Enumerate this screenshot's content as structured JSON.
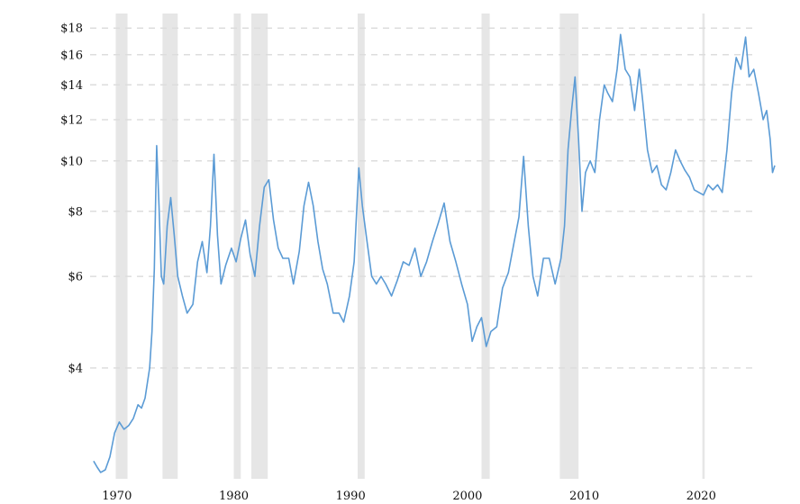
{
  "chart_data": {
    "type": "line",
    "title": "",
    "xlabel": "",
    "ylabel": "",
    "y_scale": "log",
    "xlim": [
      1967.7,
      2024.6
    ],
    "ylim": [
      2.45,
      19.2
    ],
    "y_ticks": [
      {
        "value": 4,
        "label": "$4"
      },
      {
        "value": 6,
        "label": "$6"
      },
      {
        "value": 8,
        "label": "$8"
      },
      {
        "value": 10,
        "label": "$10"
      },
      {
        "value": 12,
        "label": "$12"
      },
      {
        "value": 14,
        "label": "$14"
      },
      {
        "value": 16,
        "label": "$16"
      },
      {
        "value": 18,
        "label": "$18"
      }
    ],
    "x_ticks": [
      {
        "value": 1970,
        "label": "1970"
      },
      {
        "value": 1980,
        "label": "1980"
      },
      {
        "value": 1990,
        "label": "1990"
      },
      {
        "value": 2000,
        "label": "2000"
      },
      {
        "value": 2010,
        "label": "2010"
      },
      {
        "value": 2020,
        "label": "2020"
      }
    ],
    "grid": "horizontal-dashed",
    "legend": "none",
    "shaded_periods": [
      [
        1969.9,
        1970.9
      ],
      [
        1973.9,
        1975.2
      ],
      [
        1980.0,
        1980.6
      ],
      [
        1981.5,
        1982.9
      ],
      [
        1990.6,
        1991.2
      ],
      [
        2001.2,
        2001.9
      ],
      [
        2007.9,
        2009.5
      ],
      [
        2020.1,
        2020.3
      ]
    ],
    "colors": {
      "line": "#5b9bd5",
      "shade": "#e6e6e6",
      "grid": "#dddddd"
    },
    "series": [
      {
        "points": [
          [
            1968.0,
            2.65
          ],
          [
            1968.3,
            2.58
          ],
          [
            1968.6,
            2.52
          ],
          [
            1969.0,
            2.55
          ],
          [
            1969.4,
            2.7
          ],
          [
            1969.8,
            3.0
          ],
          [
            1970.2,
            3.15
          ],
          [
            1970.6,
            3.05
          ],
          [
            1971.0,
            3.1
          ],
          [
            1971.4,
            3.2
          ],
          [
            1971.8,
            3.4
          ],
          [
            1972.1,
            3.35
          ],
          [
            1972.4,
            3.5
          ],
          [
            1972.8,
            4.0
          ],
          [
            1973.0,
            4.7
          ],
          [
            1973.2,
            6.2
          ],
          [
            1973.4,
            10.7
          ],
          [
            1973.6,
            8.2
          ],
          [
            1973.8,
            6.0
          ],
          [
            1974.0,
            5.8
          ],
          [
            1974.3,
            7.5
          ],
          [
            1974.6,
            8.5
          ],
          [
            1974.9,
            7.2
          ],
          [
            1975.2,
            6.0
          ],
          [
            1975.6,
            5.5
          ],
          [
            1976.0,
            5.1
          ],
          [
            1976.5,
            5.3
          ],
          [
            1976.9,
            6.4
          ],
          [
            1977.3,
            7.0
          ],
          [
            1977.7,
            6.1
          ],
          [
            1978.0,
            7.5
          ],
          [
            1978.3,
            10.3
          ],
          [
            1978.6,
            7.2
          ],
          [
            1978.9,
            5.8
          ],
          [
            1979.3,
            6.3
          ],
          [
            1979.8,
            6.8
          ],
          [
            1980.2,
            6.4
          ],
          [
            1980.6,
            7.1
          ],
          [
            1981.0,
            7.7
          ],
          [
            1981.4,
            6.6
          ],
          [
            1981.8,
            6.0
          ],
          [
            1982.2,
            7.5
          ],
          [
            1982.6,
            8.9
          ],
          [
            1983.0,
            9.2
          ],
          [
            1983.4,
            7.7
          ],
          [
            1983.8,
            6.8
          ],
          [
            1984.2,
            6.5
          ],
          [
            1984.7,
            6.5
          ],
          [
            1985.1,
            5.8
          ],
          [
            1985.6,
            6.7
          ],
          [
            1986.0,
            8.2
          ],
          [
            1986.4,
            9.1
          ],
          [
            1986.8,
            8.2
          ],
          [
            1987.2,
            7.0
          ],
          [
            1987.6,
            6.2
          ],
          [
            1988.0,
            5.8
          ],
          [
            1988.5,
            5.1
          ],
          [
            1989.0,
            5.1
          ],
          [
            1989.4,
            4.9
          ],
          [
            1989.9,
            5.5
          ],
          [
            1990.3,
            6.4
          ],
          [
            1990.7,
            9.7
          ],
          [
            1991.0,
            8.2
          ],
          [
            1991.4,
            7.0
          ],
          [
            1991.8,
            6.0
          ],
          [
            1992.2,
            5.8
          ],
          [
            1992.6,
            6.0
          ],
          [
            1993.0,
            5.8
          ],
          [
            1993.5,
            5.5
          ],
          [
            1994.0,
            5.9
          ],
          [
            1994.5,
            6.4
          ],
          [
            1995.0,
            6.3
          ],
          [
            1995.5,
            6.8
          ],
          [
            1996.0,
            6.0
          ],
          [
            1996.5,
            6.4
          ],
          [
            1997.0,
            7.0
          ],
          [
            1997.5,
            7.6
          ],
          [
            1998.0,
            8.3
          ],
          [
            1998.5,
            7.0
          ],
          [
            1999.0,
            6.4
          ],
          [
            1999.5,
            5.8
          ],
          [
            2000.0,
            5.3
          ],
          [
            2000.4,
            4.5
          ],
          [
            2000.8,
            4.8
          ],
          [
            2001.2,
            5.0
          ],
          [
            2001.6,
            4.4
          ],
          [
            2002.0,
            4.7
          ],
          [
            2002.5,
            4.8
          ],
          [
            2003.0,
            5.7
          ],
          [
            2003.5,
            6.1
          ],
          [
            2004.0,
            7.0
          ],
          [
            2004.4,
            7.8
          ],
          [
            2004.8,
            10.2
          ],
          [
            2005.2,
            7.5
          ],
          [
            2005.6,
            6.0
          ],
          [
            2006.0,
            5.5
          ],
          [
            2006.5,
            6.5
          ],
          [
            2007.0,
            6.5
          ],
          [
            2007.5,
            5.8
          ],
          [
            2008.0,
            6.5
          ],
          [
            2008.3,
            7.5
          ],
          [
            2008.6,
            10.5
          ],
          [
            2008.9,
            12.5
          ],
          [
            2009.2,
            14.5
          ],
          [
            2009.5,
            11.0
          ],
          [
            2009.8,
            8.0
          ],
          [
            2010.1,
            9.5
          ],
          [
            2010.5,
            10.0
          ],
          [
            2010.9,
            9.5
          ],
          [
            2011.3,
            12.0
          ],
          [
            2011.7,
            14.0
          ],
          [
            2012.0,
            13.5
          ],
          [
            2012.4,
            13.0
          ],
          [
            2012.8,
            15.0
          ],
          [
            2013.1,
            17.5
          ],
          [
            2013.5,
            15.0
          ],
          [
            2013.9,
            14.5
          ],
          [
            2014.3,
            12.5
          ],
          [
            2014.7,
            15.0
          ],
          [
            2015.0,
            13.0
          ],
          [
            2015.4,
            10.5
          ],
          [
            2015.8,
            9.5
          ],
          [
            2016.2,
            9.8
          ],
          [
            2016.6,
            9.0
          ],
          [
            2017.0,
            8.8
          ],
          [
            2017.4,
            9.5
          ],
          [
            2017.8,
            10.5
          ],
          [
            2018.2,
            10.0
          ],
          [
            2018.6,
            9.6
          ],
          [
            2019.0,
            9.3
          ],
          [
            2019.4,
            8.8
          ],
          [
            2019.8,
            8.7
          ],
          [
            2020.2,
            8.6
          ],
          [
            2020.6,
            9.0
          ],
          [
            2021.0,
            8.8
          ],
          [
            2021.4,
            9.0
          ],
          [
            2021.8,
            8.7
          ],
          [
            2022.2,
            10.5
          ],
          [
            2022.6,
            13.5
          ],
          [
            2023.0,
            15.8
          ],
          [
            2023.4,
            15.0
          ],
          [
            2023.8,
            17.3
          ],
          [
            2024.1,
            14.5
          ],
          [
            2024.5,
            15.0
          ],
          [
            2024.9,
            13.5
          ],
          [
            2025.3,
            12.0
          ],
          [
            2025.6,
            12.5
          ],
          [
            2025.9,
            11.0
          ],
          [
            2026.1,
            9.5
          ],
          [
            2026.3,
            9.8
          ]
        ]
      }
    ]
  }
}
